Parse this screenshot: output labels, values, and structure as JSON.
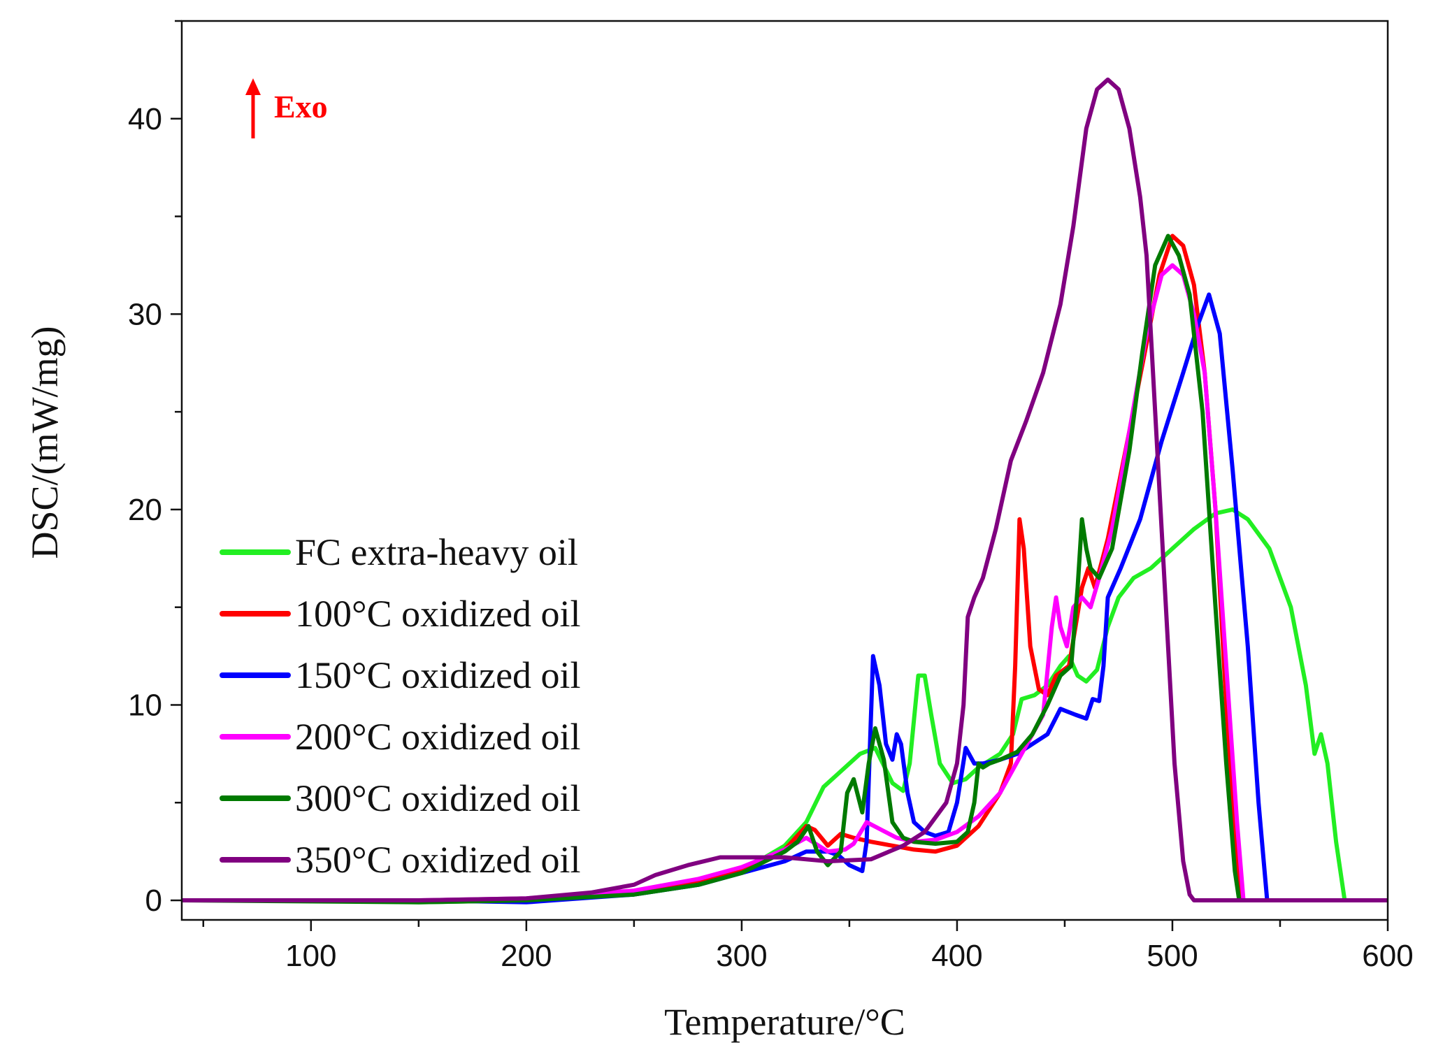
{
  "chart_data": {
    "type": "line",
    "title": "",
    "xlabel": "Temperature/°C",
    "ylabel": "DSC/(mW/mg)",
    "xlim": [
      40,
      600
    ],
    "ylim": [
      -1,
      45
    ],
    "x_ticks": [
      100,
      200,
      300,
      400,
      500,
      600
    ],
    "y_ticks": [
      0,
      10,
      20,
      30,
      40
    ],
    "grid": false,
    "legend_position": "left",
    "annotation": {
      "text": "Exo",
      "color": "#ff0000"
    },
    "series": [
      {
        "name": "FC extra-heavy oil",
        "color": "#22ee22",
        "points": [
          [
            40,
            0
          ],
          [
            100,
            0
          ],
          [
            150,
            -0.1
          ],
          [
            200,
            0
          ],
          [
            250,
            0.3
          ],
          [
            280,
            0.8
          ],
          [
            300,
            1.5
          ],
          [
            320,
            2.8
          ],
          [
            330,
            4.0
          ],
          [
            338,
            5.8
          ],
          [
            345,
            6.5
          ],
          [
            355,
            7.5
          ],
          [
            362,
            7.8
          ],
          [
            370,
            6.0
          ],
          [
            375,
            5.6
          ],
          [
            378,
            7.0
          ],
          [
            382,
            11.5
          ],
          [
            385,
            11.5
          ],
          [
            388,
            9.5
          ],
          [
            392,
            7.0
          ],
          [
            398,
            6.0
          ],
          [
            404,
            6.2
          ],
          [
            410,
            6.8
          ],
          [
            420,
            7.5
          ],
          [
            426,
            8.5
          ],
          [
            430,
            10.3
          ],
          [
            436,
            10.5
          ],
          [
            442,
            11.0
          ],
          [
            448,
            12.0
          ],
          [
            452,
            12.5
          ],
          [
            456,
            11.5
          ],
          [
            460,
            11.2
          ],
          [
            465,
            11.8
          ],
          [
            470,
            14.0
          ],
          [
            475,
            15.5
          ],
          [
            482,
            16.5
          ],
          [
            490,
            17.0
          ],
          [
            500,
            18.0
          ],
          [
            510,
            19.0
          ],
          [
            520,
            19.8
          ],
          [
            528,
            20.0
          ],
          [
            535,
            19.5
          ],
          [
            545,
            18.0
          ],
          [
            555,
            15.0
          ],
          [
            562,
            11.0
          ],
          [
            566,
            7.5
          ],
          [
            569,
            8.5
          ],
          [
            572,
            7.0
          ],
          [
            576,
            3.0
          ],
          [
            580,
            0
          ],
          [
            600,
            0
          ]
        ]
      },
      {
        "name": "100°C oxidized oil",
        "color": "#ff0000",
        "points": [
          [
            40,
            0
          ],
          [
            150,
            0
          ],
          [
            200,
            0
          ],
          [
            250,
            0.4
          ],
          [
            280,
            1.0
          ],
          [
            300,
            1.6
          ],
          [
            320,
            2.6
          ],
          [
            330,
            3.8
          ],
          [
            334,
            3.6
          ],
          [
            340,
            2.8
          ],
          [
            346,
            3.4
          ],
          [
            352,
            3.2
          ],
          [
            360,
            3.0
          ],
          [
            370,
            2.8
          ],
          [
            380,
            2.6
          ],
          [
            390,
            2.5
          ],
          [
            400,
            2.8
          ],
          [
            410,
            3.8
          ],
          [
            420,
            5.5
          ],
          [
            425,
            7.0
          ],
          [
            427,
            12.0
          ],
          [
            429,
            19.5
          ],
          [
            431,
            18.0
          ],
          [
            434,
            13.0
          ],
          [
            438,
            10.8
          ],
          [
            442,
            10.5
          ],
          [
            446,
            11.5
          ],
          [
            452,
            12.0
          ],
          [
            458,
            16.0
          ],
          [
            461,
            17.0
          ],
          [
            464,
            16.0
          ],
          [
            470,
            18.5
          ],
          [
            480,
            24.0
          ],
          [
            488,
            28.5
          ],
          [
            494,
            32.0
          ],
          [
            500,
            34.0
          ],
          [
            505,
            33.5
          ],
          [
            510,
            31.5
          ],
          [
            515,
            27.0
          ],
          [
            520,
            20.0
          ],
          [
            525,
            10.0
          ],
          [
            530,
            2.0
          ],
          [
            532,
            0
          ],
          [
            600,
            0
          ]
        ]
      },
      {
        "name": "150°C oxidized oil",
        "color": "#0000ff",
        "points": [
          [
            40,
            0
          ],
          [
            150,
            0
          ],
          [
            200,
            -0.1
          ],
          [
            250,
            0.3
          ],
          [
            280,
            0.8
          ],
          [
            300,
            1.4
          ],
          [
            320,
            2.0
          ],
          [
            330,
            2.5
          ],
          [
            340,
            2.5
          ],
          [
            345,
            2.3
          ],
          [
            350,
            1.8
          ],
          [
            356,
            1.5
          ],
          [
            358,
            3.0
          ],
          [
            361,
            12.5
          ],
          [
            364,
            11.0
          ],
          [
            367,
            8.0
          ],
          [
            370,
            7.2
          ],
          [
            372,
            8.5
          ],
          [
            374,
            8.0
          ],
          [
            377,
            5.5
          ],
          [
            380,
            4.0
          ],
          [
            385,
            3.5
          ],
          [
            390,
            3.3
          ],
          [
            396,
            3.5
          ],
          [
            400,
            5.0
          ],
          [
            404,
            7.8
          ],
          [
            408,
            7.0
          ],
          [
            412,
            7.0
          ],
          [
            420,
            7.2
          ],
          [
            428,
            7.5
          ],
          [
            435,
            8.0
          ],
          [
            442,
            8.5
          ],
          [
            448,
            9.8
          ],
          [
            455,
            9.5
          ],
          [
            460,
            9.3
          ],
          [
            463,
            10.3
          ],
          [
            466,
            10.2
          ],
          [
            468,
            12.0
          ],
          [
            470,
            15.5
          ],
          [
            476,
            17.0
          ],
          [
            485,
            19.5
          ],
          [
            495,
            23.5
          ],
          [
            505,
            27.0
          ],
          [
            512,
            29.5
          ],
          [
            517,
            31.0
          ],
          [
            522,
            29.0
          ],
          [
            528,
            22.0
          ],
          [
            535,
            13.0
          ],
          [
            540,
            5.0
          ],
          [
            544,
            0
          ],
          [
            600,
            0
          ]
        ]
      },
      {
        "name": "200°C oxidized oil",
        "color": "#ff00ff",
        "points": [
          [
            40,
            0
          ],
          [
            150,
            0
          ],
          [
            200,
            0.1
          ],
          [
            250,
            0.5
          ],
          [
            280,
            1.1
          ],
          [
            300,
            1.7
          ],
          [
            320,
            2.6
          ],
          [
            330,
            3.2
          ],
          [
            340,
            2.5
          ],
          [
            348,
            2.6
          ],
          [
            352,
            2.9
          ],
          [
            358,
            4.0
          ],
          [
            365,
            3.6
          ],
          [
            372,
            3.2
          ],
          [
            380,
            3.0
          ],
          [
            390,
            3.1
          ],
          [
            400,
            3.5
          ],
          [
            410,
            4.3
          ],
          [
            420,
            5.5
          ],
          [
            430,
            7.5
          ],
          [
            440,
            9.5
          ],
          [
            444,
            14.0
          ],
          [
            446,
            15.5
          ],
          [
            448,
            14.0
          ],
          [
            451,
            13.0
          ],
          [
            454,
            15.0
          ],
          [
            458,
            15.5
          ],
          [
            462,
            15.0
          ],
          [
            466,
            16.5
          ],
          [
            472,
            19.0
          ],
          [
            480,
            24.0
          ],
          [
            488,
            29.0
          ],
          [
            495,
            32.0
          ],
          [
            500,
            32.5
          ],
          [
            505,
            32.0
          ],
          [
            510,
            30.0
          ],
          [
            515,
            27.0
          ],
          [
            520,
            20.0
          ],
          [
            525,
            12.0
          ],
          [
            530,
            4.0
          ],
          [
            533,
            0
          ],
          [
            600,
            0
          ]
        ]
      },
      {
        "name": "300°C oxidized oil",
        "color": "#007a00",
        "points": [
          [
            40,
            0
          ],
          [
            150,
            -0.1
          ],
          [
            200,
            0
          ],
          [
            250,
            0.3
          ],
          [
            280,
            0.8
          ],
          [
            300,
            1.4
          ],
          [
            320,
            2.5
          ],
          [
            326,
            3.0
          ],
          [
            331,
            3.8
          ],
          [
            335,
            2.5
          ],
          [
            340,
            1.8
          ],
          [
            346,
            2.5
          ],
          [
            349,
            5.5
          ],
          [
            352,
            6.2
          ],
          [
            356,
            4.5
          ],
          [
            359,
            7.0
          ],
          [
            362,
            8.8
          ],
          [
            366,
            7.2
          ],
          [
            370,
            4.0
          ],
          [
            375,
            3.2
          ],
          [
            380,
            3.0
          ],
          [
            390,
            2.9
          ],
          [
            400,
            3.0
          ],
          [
            405,
            3.5
          ],
          [
            408,
            5.0
          ],
          [
            410,
            7.0
          ],
          [
            412,
            6.8
          ],
          [
            415,
            7.0
          ],
          [
            420,
            7.2
          ],
          [
            428,
            7.6
          ],
          [
            435,
            8.5
          ],
          [
            442,
            10.0
          ],
          [
            448,
            11.5
          ],
          [
            453,
            12.0
          ],
          [
            456,
            16.0
          ],
          [
            458,
            19.5
          ],
          [
            460,
            18.0
          ],
          [
            462,
            17.0
          ],
          [
            466,
            16.5
          ],
          [
            472,
            18.0
          ],
          [
            480,
            23.0
          ],
          [
            486,
            28.0
          ],
          [
            492,
            32.5
          ],
          [
            498,
            34.0
          ],
          [
            503,
            33.0
          ],
          [
            508,
            31.0
          ],
          [
            514,
            25.0
          ],
          [
            520,
            15.0
          ],
          [
            525,
            7.0
          ],
          [
            529,
            1.5
          ],
          [
            531,
            0
          ],
          [
            600,
            0
          ]
        ]
      },
      {
        "name": "350°C oxidized oil",
        "color": "#800080",
        "points": [
          [
            40,
            0
          ],
          [
            150,
            0
          ],
          [
            200,
            0.1
          ],
          [
            230,
            0.4
          ],
          [
            250,
            0.8
          ],
          [
            260,
            1.3
          ],
          [
            275,
            1.8
          ],
          [
            290,
            2.2
          ],
          [
            305,
            2.2
          ],
          [
            320,
            2.2
          ],
          [
            340,
            2.0
          ],
          [
            360,
            2.1
          ],
          [
            375,
            2.8
          ],
          [
            385,
            3.5
          ],
          [
            395,
            5.0
          ],
          [
            400,
            7.0
          ],
          [
            403,
            10.0
          ],
          [
            405,
            14.5
          ],
          [
            408,
            15.5
          ],
          [
            412,
            16.5
          ],
          [
            418,
            19.0
          ],
          [
            425,
            22.5
          ],
          [
            432,
            24.5
          ],
          [
            440,
            27.0
          ],
          [
            448,
            30.5
          ],
          [
            454,
            34.5
          ],
          [
            460,
            39.5
          ],
          [
            465,
            41.5
          ],
          [
            470,
            42.0
          ],
          [
            475,
            41.5
          ],
          [
            480,
            39.5
          ],
          [
            485,
            36.0
          ],
          [
            488,
            33.0
          ],
          [
            492,
            25.0
          ],
          [
            497,
            15.0
          ],
          [
            501,
            7.0
          ],
          [
            505,
            2.0
          ],
          [
            508,
            0.3
          ],
          [
            510,
            0
          ],
          [
            600,
            0
          ]
        ]
      }
    ]
  }
}
